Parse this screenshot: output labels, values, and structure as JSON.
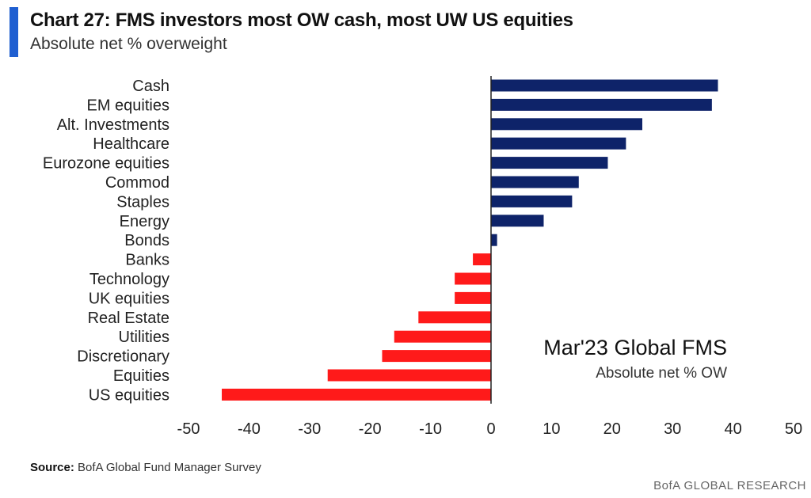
{
  "header": {
    "title": "Chart 27: FMS investors most OW cash, most UW US equities",
    "subtitle": "Absolute net % overweight"
  },
  "annotation": {
    "title": "Mar'23 Global FMS",
    "subtitle": "Absolute net % OW"
  },
  "footer": {
    "source_label": "Source:",
    "source_text": "BofA Global Fund Manager Survey",
    "brand": "BofA GLOBAL RESEARCH"
  },
  "colors": {
    "positive": "#0e2369",
    "negative": "#ff1a1a",
    "accent": "#1f5fd1"
  },
  "chart_data": {
    "type": "bar",
    "orientation": "horizontal",
    "categories": [
      "Cash",
      "EM equities",
      "Alt. Investments",
      "Healthcare",
      "Eurozone equities",
      "Commod",
      "Staples",
      "Energy",
      "Bonds",
      "Banks",
      "Technology",
      "UK equities",
      "Real Estate",
      "Utilities",
      "Discretionary",
      "Equities",
      "US equities"
    ],
    "values": [
      37.5,
      36.5,
      25,
      22.3,
      19.3,
      14.5,
      13.4,
      8.7,
      1,
      -3,
      -6,
      -6,
      -12,
      -16,
      -18,
      -27,
      -44.5
    ],
    "xlim": [
      -50,
      50
    ],
    "xticks": [
      -50,
      -40,
      -30,
      -20,
      -10,
      0,
      10,
      20,
      30,
      40,
      50
    ],
    "grid": false
  }
}
